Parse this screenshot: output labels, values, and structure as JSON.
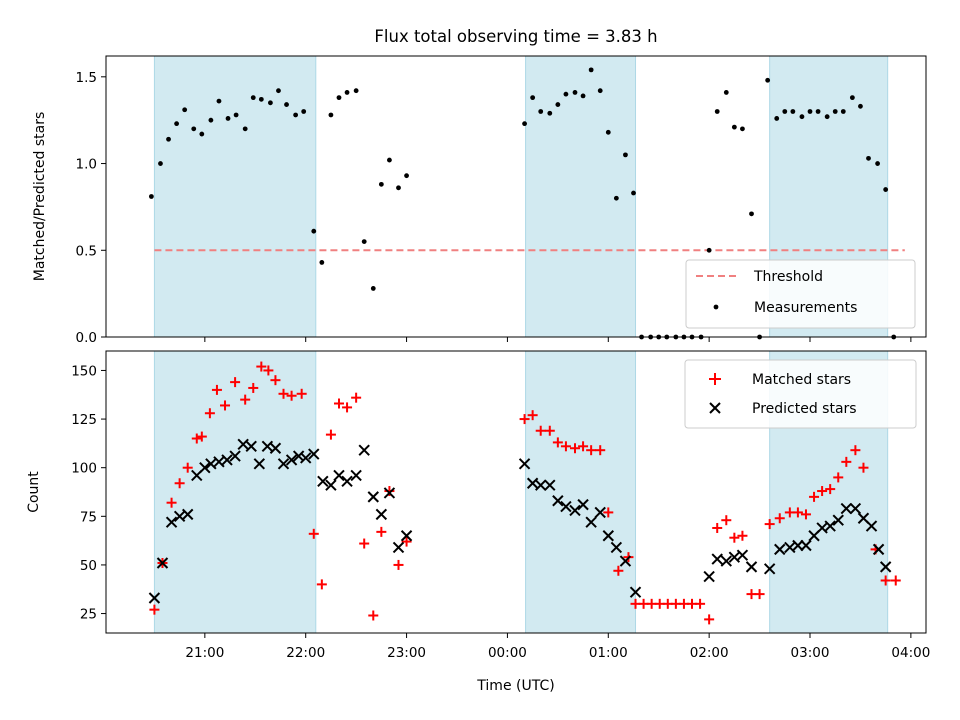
{
  "chart_data": {
    "type": "scatter",
    "title": "Flux total observing time = 3.83 h",
    "xlabel": "Time (UTC)",
    "x_ticks": [
      "21:00",
      "22:00",
      "23:00",
      "00:00",
      "01:00",
      "02:00",
      "03:00",
      "04:00"
    ],
    "x_range_hours": [
      20.02,
      28.15
    ],
    "observing_windows_hours": [
      [
        20.5,
        22.1
      ],
      [
        24.18,
        25.27
      ],
      [
        26.6,
        27.77
      ]
    ],
    "window_color": "#add8e6",
    "panels": [
      {
        "ylabel": "Matched/Predicted stars",
        "ylim": [
          0,
          1.62
        ],
        "yticks": [
          0.0,
          0.5,
          1.0,
          1.5
        ],
        "threshold": {
          "name": "Threshold",
          "value": 0.5,
          "x_range_hours": [
            20.5,
            27.94
          ],
          "color": "#f08080"
        },
        "legend_position": "lower-right",
        "series": [
          {
            "name": "Measurements",
            "marker": "dot",
            "color": "#000000",
            "points": [
              [
                20.47,
                0.81
              ],
              [
                20.56,
                1.0
              ],
              [
                20.64,
                1.14
              ],
              [
                20.72,
                1.23
              ],
              [
                20.8,
                1.31
              ],
              [
                20.89,
                1.2
              ],
              [
                20.97,
                1.17
              ],
              [
                21.06,
                1.25
              ],
              [
                21.14,
                1.36
              ],
              [
                21.23,
                1.26
              ],
              [
                21.31,
                1.28
              ],
              [
                21.4,
                1.2
              ],
              [
                21.48,
                1.38
              ],
              [
                21.56,
                1.37
              ],
              [
                21.65,
                1.35
              ],
              [
                21.73,
                1.42
              ],
              [
                21.81,
                1.34
              ],
              [
                21.9,
                1.28
              ],
              [
                21.98,
                1.3
              ],
              [
                22.08,
                0.61
              ],
              [
                22.16,
                0.43
              ],
              [
                22.25,
                1.28
              ],
              [
                22.33,
                1.38
              ],
              [
                22.41,
                1.41
              ],
              [
                22.5,
                1.42
              ],
              [
                22.58,
                0.55
              ],
              [
                22.67,
                0.28
              ],
              [
                22.75,
                0.88
              ],
              [
                22.83,
                1.02
              ],
              [
                22.92,
                0.86
              ],
              [
                23.0,
                0.93
              ],
              [
                24.17,
                1.23
              ],
              [
                24.25,
                1.38
              ],
              [
                24.33,
                1.3
              ],
              [
                24.42,
                1.29
              ],
              [
                24.5,
                1.34
              ],
              [
                24.58,
                1.4
              ],
              [
                24.67,
                1.41
              ],
              [
                24.75,
                1.39
              ],
              [
                24.83,
                1.54
              ],
              [
                24.92,
                1.42
              ],
              [
                25.0,
                1.18
              ],
              [
                25.08,
                0.8
              ],
              [
                25.17,
                1.05
              ],
              [
                25.25,
                0.83
              ],
              [
                25.33,
                0.0
              ],
              [
                25.42,
                0.0
              ],
              [
                25.5,
                0.0
              ],
              [
                25.58,
                0.0
              ],
              [
                25.67,
                0.0
              ],
              [
                25.75,
                0.0
              ],
              [
                25.83,
                0.0
              ],
              [
                25.92,
                0.0
              ],
              [
                26.0,
                0.5
              ],
              [
                26.08,
                1.3
              ],
              [
                26.17,
                1.41
              ],
              [
                26.25,
                1.21
              ],
              [
                26.33,
                1.2
              ],
              [
                26.42,
                0.71
              ],
              [
                26.5,
                0.0
              ],
              [
                26.58,
                1.48
              ],
              [
                26.67,
                1.26
              ],
              [
                26.75,
                1.3
              ],
              [
                26.83,
                1.3
              ],
              [
                26.92,
                1.27
              ],
              [
                27.0,
                1.3
              ],
              [
                27.08,
                1.3
              ],
              [
                27.17,
                1.27
              ],
              [
                27.25,
                1.3
              ],
              [
                27.33,
                1.3
              ],
              [
                27.42,
                1.38
              ],
              [
                27.5,
                1.33
              ],
              [
                27.58,
                1.03
              ],
              [
                27.67,
                1.0
              ],
              [
                27.75,
                0.85
              ],
              [
                27.83,
                0.0
              ]
            ]
          }
        ]
      },
      {
        "ylabel": "Count",
        "ylim": [
          15,
          160
        ],
        "yticks": [
          25,
          50,
          75,
          100,
          125,
          150
        ],
        "legend_position": "upper-right",
        "series": [
          {
            "name": "Matched stars",
            "marker": "plus",
            "color": "#ff0000",
            "points": [
              [
                20.5,
                27
              ],
              [
                20.58,
                51
              ],
              [
                20.67,
                82
              ],
              [
                20.75,
                92
              ],
              [
                20.83,
                100
              ],
              [
                20.92,
                115
              ],
              [
                20.97,
                116
              ],
              [
                21.05,
                128
              ],
              [
                21.12,
                140
              ],
              [
                21.2,
                132
              ],
              [
                21.3,
                144
              ],
              [
                21.4,
                135
              ],
              [
                21.48,
                141
              ],
              [
                21.56,
                152
              ],
              [
                21.63,
                150
              ],
              [
                21.7,
                145
              ],
              [
                21.78,
                138
              ],
              [
                21.86,
                137
              ],
              [
                21.96,
                138
              ],
              [
                22.08,
                66
              ],
              [
                22.16,
                40
              ],
              [
                22.25,
                117
              ],
              [
                22.33,
                133
              ],
              [
                22.41,
                131
              ],
              [
                22.5,
                136
              ],
              [
                22.58,
                61
              ],
              [
                22.67,
                24
              ],
              [
                22.75,
                67
              ],
              [
                22.83,
                88
              ],
              [
                22.92,
                50
              ],
              [
                23.0,
                62
              ],
              [
                24.17,
                125
              ],
              [
                24.25,
                127
              ],
              [
                24.33,
                119
              ],
              [
                24.42,
                119
              ],
              [
                24.5,
                113
              ],
              [
                24.58,
                111
              ],
              [
                24.67,
                110
              ],
              [
                24.75,
                111
              ],
              [
                24.83,
                109
              ],
              [
                24.92,
                109
              ],
              [
                25.0,
                77
              ],
              [
                25.1,
                47
              ],
              [
                25.2,
                54
              ],
              [
                25.27,
                30
              ],
              [
                25.35,
                30
              ],
              [
                25.43,
                30
              ],
              [
                25.51,
                30
              ],
              [
                25.59,
                30
              ],
              [
                25.67,
                30
              ],
              [
                25.75,
                30
              ],
              [
                25.83,
                30
              ],
              [
                25.91,
                30
              ],
              [
                26.0,
                22
              ],
              [
                26.08,
                69
              ],
              [
                26.17,
                73
              ],
              [
                26.25,
                64
              ],
              [
                26.33,
                65
              ],
              [
                26.42,
                35
              ],
              [
                26.5,
                35
              ],
              [
                26.6,
                71
              ],
              [
                26.7,
                74
              ],
              [
                26.8,
                77
              ],
              [
                26.88,
                77
              ],
              [
                26.96,
                76
              ],
              [
                27.04,
                85
              ],
              [
                27.12,
                88
              ],
              [
                27.2,
                89
              ],
              [
                27.28,
                95
              ],
              [
                27.36,
                103
              ],
              [
                27.45,
                109
              ],
              [
                27.53,
                100
              ],
              [
                27.65,
                58
              ],
              [
                27.75,
                42
              ],
              [
                27.85,
                42
              ]
            ]
          },
          {
            "name": "Predicted stars",
            "marker": "x",
            "color": "#000000",
            "points": [
              [
                20.5,
                33
              ],
              [
                20.58,
                51
              ],
              [
                20.67,
                72
              ],
              [
                20.75,
                75
              ],
              [
                20.83,
                76
              ],
              [
                20.92,
                96
              ],
              [
                21.0,
                100
              ],
              [
                21.06,
                102
              ],
              [
                21.14,
                103
              ],
              [
                21.22,
                104
              ],
              [
                21.3,
                106
              ],
              [
                21.38,
                112
              ],
              [
                21.46,
                111
              ],
              [
                21.54,
                102
              ],
              [
                21.62,
                111
              ],
              [
                21.7,
                110
              ],
              [
                21.78,
                102
              ],
              [
                21.86,
                104
              ],
              [
                21.93,
                106
              ],
              [
                22.0,
                105
              ],
              [
                22.08,
                107
              ],
              [
                22.17,
                93
              ],
              [
                22.25,
                91
              ],
              [
                22.33,
                96
              ],
              [
                22.41,
                93
              ],
              [
                22.5,
                96
              ],
              [
                22.58,
                109
              ],
              [
                22.67,
                85
              ],
              [
                22.75,
                76
              ],
              [
                22.83,
                87
              ],
              [
                22.92,
                59
              ],
              [
                23.0,
                65
              ],
              [
                24.17,
                102
              ],
              [
                24.25,
                92
              ],
              [
                24.33,
                91
              ],
              [
                24.42,
                91
              ],
              [
                24.5,
                83
              ],
              [
                24.58,
                80
              ],
              [
                24.67,
                78
              ],
              [
                24.75,
                81
              ],
              [
                24.83,
                72
              ],
              [
                24.92,
                77
              ],
              [
                25.0,
                65
              ],
              [
                25.08,
                59
              ],
              [
                25.17,
                52
              ],
              [
                25.27,
                36
              ],
              [
                26.0,
                44
              ],
              [
                26.08,
                53
              ],
              [
                26.17,
                52
              ],
              [
                26.25,
                54
              ],
              [
                26.33,
                55
              ],
              [
                26.42,
                49
              ],
              [
                26.6,
                48
              ],
              [
                26.7,
                58
              ],
              [
                26.8,
                59
              ],
              [
                26.88,
                60
              ],
              [
                26.96,
                60
              ],
              [
                27.04,
                65
              ],
              [
                27.12,
                69
              ],
              [
                27.2,
                70
              ],
              [
                27.28,
                73
              ],
              [
                27.36,
                79
              ],
              [
                27.45,
                79
              ],
              [
                27.53,
                74
              ],
              [
                27.61,
                70
              ],
              [
                27.68,
                58
              ],
              [
                27.75,
                49
              ]
            ]
          }
        ]
      }
    ]
  }
}
